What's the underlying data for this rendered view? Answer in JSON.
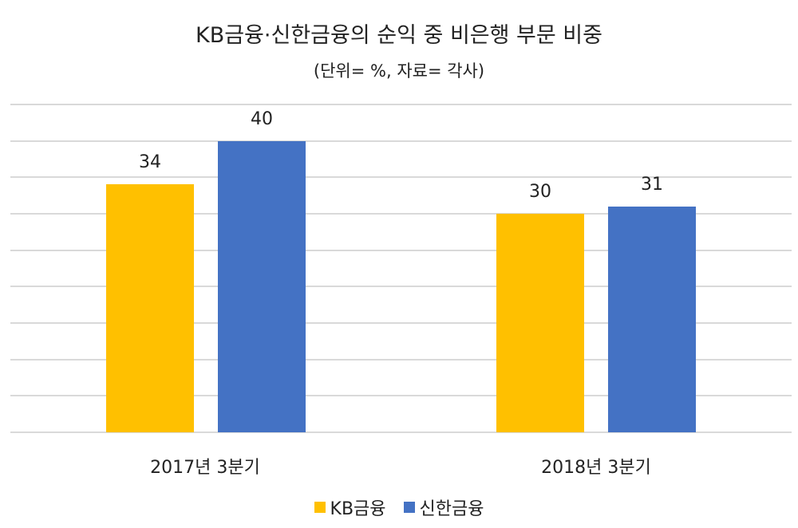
{
  "chart_data": {
    "type": "bar",
    "title": "KB금융·신한금융의 순익 중 비은행 부문 비중",
    "subtitle": "(단위= %, 자료= 각사)",
    "categories": [
      "2017년 3분기",
      "2018년 3분기"
    ],
    "series": [
      {
        "name": "KB금융",
        "values": [
          34,
          30
        ],
        "color": "#FFC000"
      },
      {
        "name": "신한금융",
        "values": [
          40,
          31
        ],
        "color": "#4472C4"
      }
    ],
    "xlabel": "",
    "ylabel": "",
    "ylim": [
      0,
      45
    ],
    "grid": true,
    "legend_position": "bottom",
    "data_labels": [
      "34",
      "40",
      "30",
      "31"
    ]
  },
  "legend": {
    "items": [
      {
        "label": "KB금융",
        "color": "#FFC000"
      },
      {
        "label": "신한금융",
        "color": "#4472C4"
      }
    ]
  }
}
